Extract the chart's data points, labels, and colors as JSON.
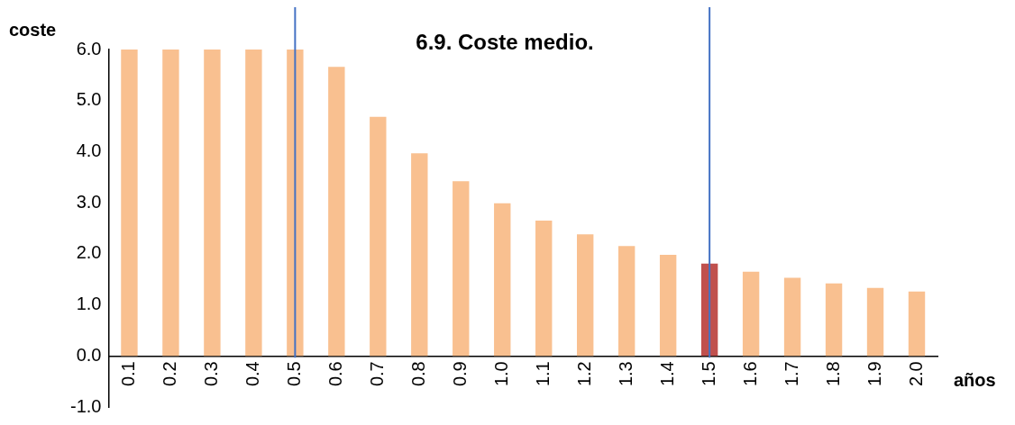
{
  "chart_data": {
    "type": "bar",
    "title": "6.9. Coste medio.",
    "xlabel": "años",
    "ylabel": "coste",
    "categories": [
      "0.1",
      "0.2",
      "0.3",
      "0.4",
      "0.5",
      "0.6",
      "0.7",
      "0.8",
      "0.9",
      "1.0",
      "1.1",
      "1.2",
      "1.3",
      "1.4",
      "1.5",
      "1.6",
      "1.7",
      "1.8",
      "1.9",
      "2.0"
    ],
    "values": [
      6.0,
      6.0,
      6.0,
      6.0,
      6.0,
      5.66,
      4.68,
      3.97,
      3.42,
      2.99,
      2.65,
      2.38,
      2.15,
      1.98,
      1.81,
      1.65,
      1.53,
      1.42,
      1.33,
      1.26
    ],
    "colors": [
      "#f9c090",
      "#f9c090",
      "#f9c090",
      "#f9c090",
      "#f9c090",
      "#f9c090",
      "#f9c090",
      "#f9c090",
      "#f9c090",
      "#f9c090",
      "#f9c090",
      "#f9c090",
      "#f9c090",
      "#f9c090",
      "#c0504d",
      "#f9c090",
      "#f9c090",
      "#f9c090",
      "#f9c090",
      "#f9c090"
    ],
    "ylim": [
      -1,
      6
    ],
    "yticks": [
      {
        "value": -1,
        "label": "-1.0"
      },
      {
        "value": 0,
        "label": "0.0"
      },
      {
        "value": 1,
        "label": "1.0"
      },
      {
        "value": 2,
        "label": "2.0"
      },
      {
        "value": 3,
        "label": "3.0"
      },
      {
        "value": 4,
        "label": "4.0"
      },
      {
        "value": 5,
        "label": "5.0"
      },
      {
        "value": 6,
        "label": "6.0"
      }
    ],
    "ref_lines": [
      {
        "axis": "x",
        "value": "0.5",
        "color": "#4472c4"
      },
      {
        "axis": "x",
        "value": "1.5",
        "color": "#4472c4"
      }
    ],
    "grid": false,
    "legend": false
  }
}
